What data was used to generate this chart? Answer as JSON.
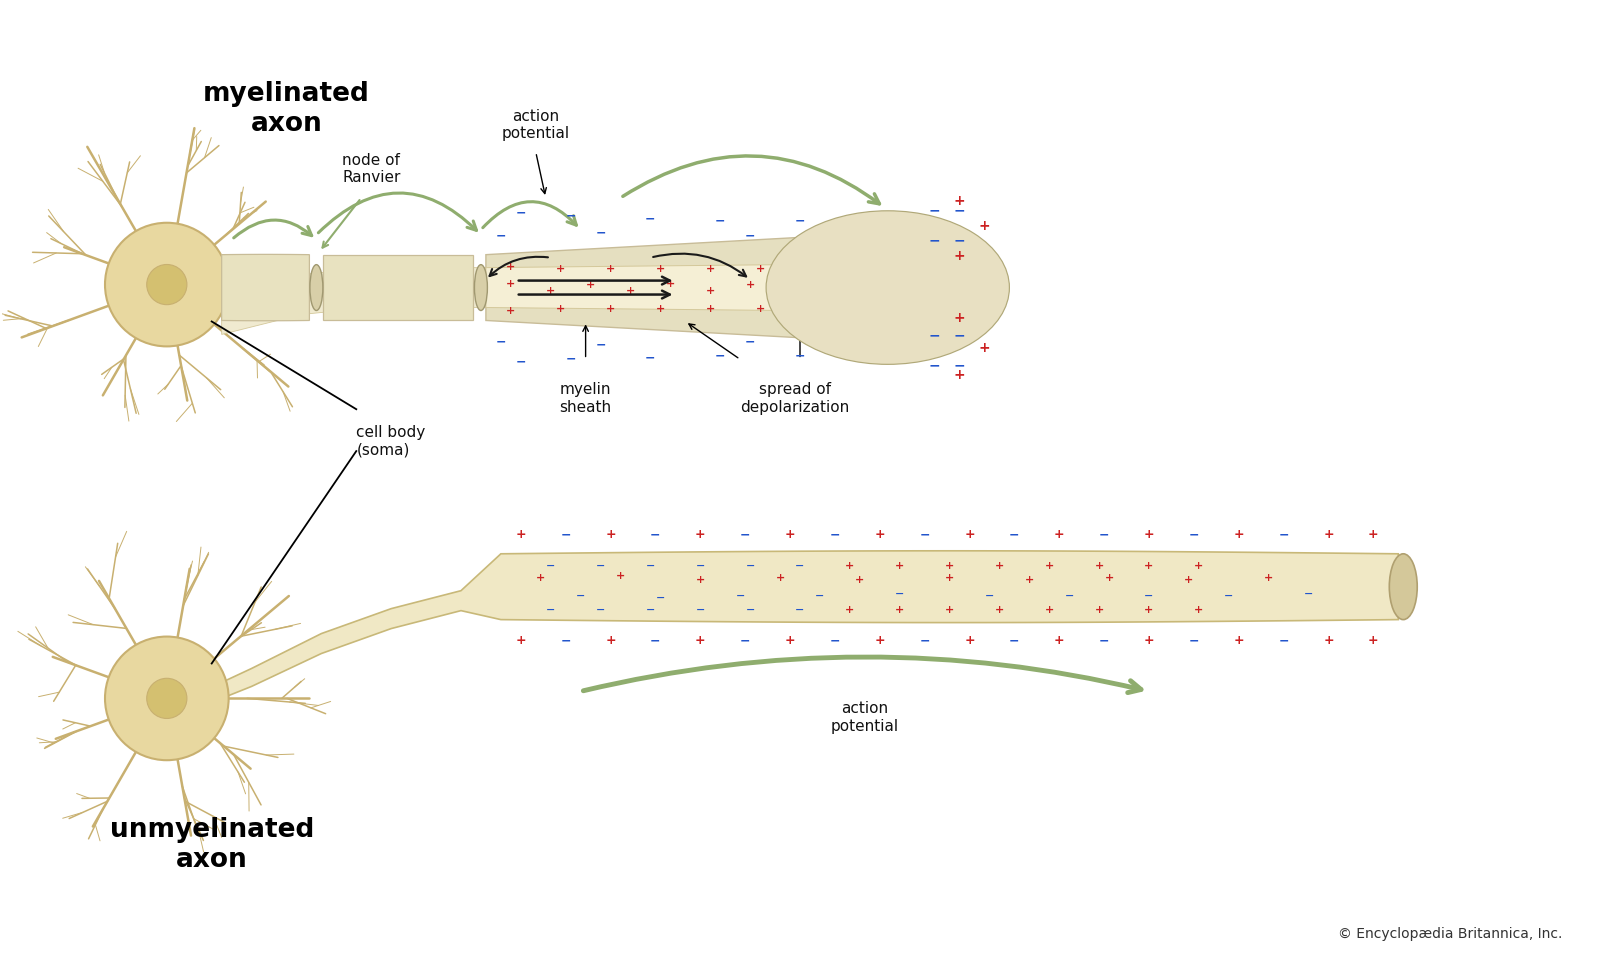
{
  "bg_color": "#ffffff",
  "copyright": "© Encyclopædia Britannica, Inc.",
  "labels": {
    "myelinated_axon": "myelinated\naxon",
    "unmyelinated_axon": "unmyelinated\naxon",
    "action_potential_top": "action\npotential",
    "action_potential_bottom": "action\npotential",
    "node_of_ranvier": "node of\nRanvier",
    "myelin_sheath": "myelin\nsheath",
    "spread_of_depolarization": "spread of\ndepolarization",
    "cell_body": "cell body\n(soma)"
  },
  "axon_fill": "#f5f0d8",
  "axon_border": "#d4c89a",
  "myelin_color": "#e8e2c0",
  "myelin_edge": "#c8bc98",
  "green_arrow": "#8fad6e",
  "red_plus": "#cc2222",
  "blue_minus": "#2255cc",
  "cell_body_fill": "#e8d8a0",
  "cell_body_border": "#c8b070",
  "nucleus_color": "#d4c070",
  "label_color": "#111111",
  "copyright_color": "#333333",
  "bold_label": "#000000",
  "node_fill": "#d8cfa8",
  "node_edge": "#a09870"
}
